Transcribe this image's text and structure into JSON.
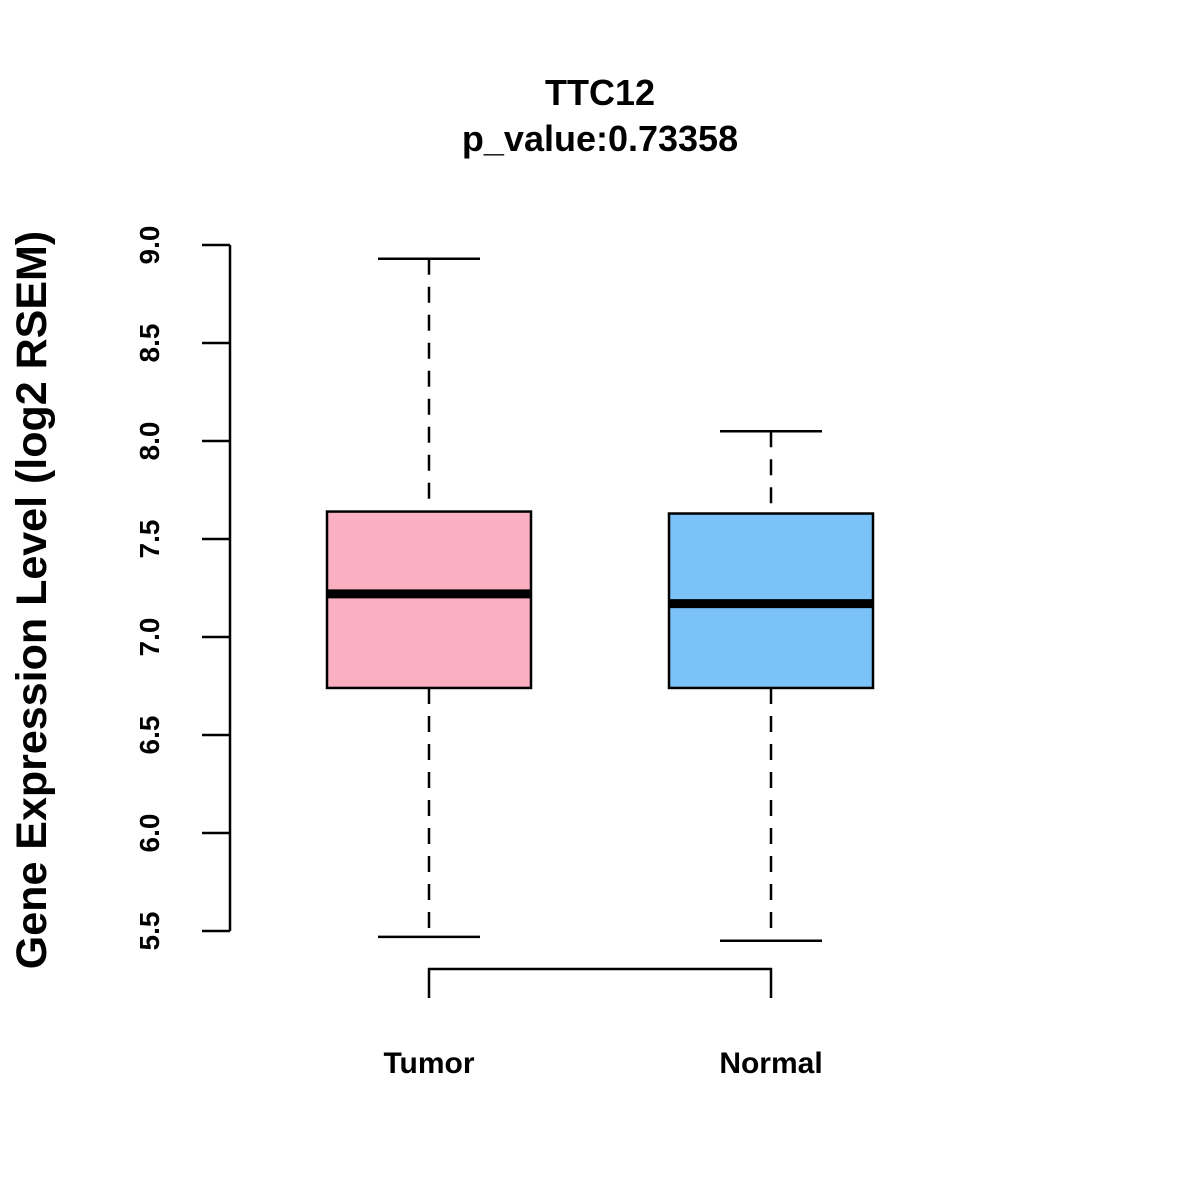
{
  "chart_data": {
    "type": "boxplot",
    "title": "TTC12",
    "subtitle": "p_value:0.73358",
    "xlabel": "",
    "ylabel": "Gene Expression Level (log2 RSEM)",
    "ylim": [
      5.5,
      9.0
    ],
    "yticks": [
      "5.5",
      "6.0",
      "6.5",
      "7.0",
      "7.5",
      "8.0",
      "8.5",
      "9.0"
    ],
    "grid": false,
    "categories": [
      "Tumor",
      "Normal"
    ],
    "boxes": [
      {
        "name": "Tumor",
        "color": "#FBB0C2",
        "whisker_low": 5.47,
        "q1": 6.74,
        "median": 7.22,
        "q3": 7.64,
        "whisker_high": 8.93
      },
      {
        "name": "Normal",
        "color": "#7AC2F8",
        "whisker_low": 5.45,
        "q1": 6.74,
        "median": 7.17,
        "q3": 7.63,
        "whisker_high": 8.05
      }
    ],
    "comparison_bracket": [
      "Tumor",
      "Normal"
    ]
  }
}
